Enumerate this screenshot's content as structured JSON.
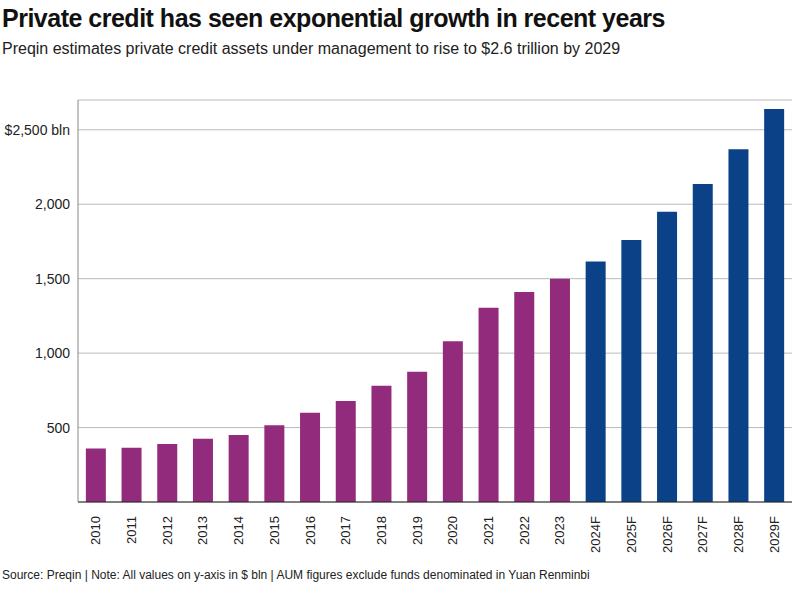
{
  "chart_data": {
    "type": "bar",
    "title": "Private credit has seen exponential growth in recent years",
    "subtitle": "Preqin estimates private credit assets under management to rise to $2.6 trillion by 2029",
    "source": "Source: Preqin | Note: All values on y-axis in $ bln | AUM figures exclude funds denominated in Yuan Renminbi",
    "categories": [
      "2010",
      "2011",
      "2012",
      "2013",
      "2014",
      "2015",
      "2016",
      "2017",
      "2018",
      "2019",
      "2020",
      "2021",
      "2022",
      "2023",
      "2024F",
      "2025F",
      "2026F",
      "2027F",
      "2028F",
      "2029F"
    ],
    "values": [
      360,
      365,
      390,
      425,
      450,
      515,
      600,
      678,
      780,
      875,
      1080,
      1305,
      1410,
      1500,
      1615,
      1760,
      1950,
      2135,
      2370,
      2640
    ],
    "colors": [
      "#922b7b",
      "#922b7b",
      "#922b7b",
      "#922b7b",
      "#922b7b",
      "#922b7b",
      "#922b7b",
      "#922b7b",
      "#922b7b",
      "#922b7b",
      "#922b7b",
      "#922b7b",
      "#922b7b",
      "#922b7b",
      "#0b4287",
      "#0b4287",
      "#0b4287",
      "#0b4287",
      "#0b4287",
      "#0b4287"
    ],
    "ylim": [
      0,
      2700
    ],
    "yticks": [
      500,
      {
        "value": 1000,
        "label": "1,000"
      },
      {
        "value": 1500,
        "label": "1,500"
      },
      {
        "value": 2000,
        "label": "2,000"
      },
      {
        "value": 2500,
        "label": "$2,500 bln"
      }
    ],
    "grid": true
  }
}
